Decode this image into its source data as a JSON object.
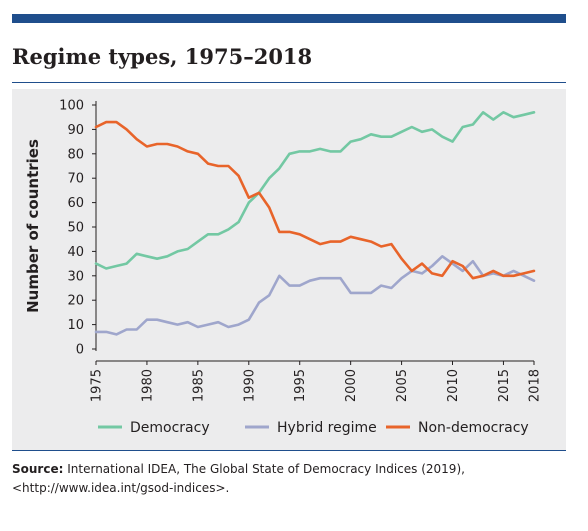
{
  "title": "Regime types, 1975–2018",
  "source": {
    "label": "Source:",
    "text": "International IDEA, The Global State of Democracy Indices (2019), <http://www.idea.int/gsod-indices>."
  },
  "colors": {
    "brand_bar": "#1f4e8c",
    "panel_bg": "#ececed",
    "democracy": "#73c8a3",
    "hybrid": "#9fa6cc",
    "non_democracy": "#e8642a"
  },
  "chart_data": {
    "type": "line",
    "ylabel": "Number of countries",
    "xlabel": "",
    "ylim": [
      0,
      100
    ],
    "xlim": [
      1975,
      2018
    ],
    "yticks": [
      0,
      10,
      20,
      30,
      40,
      50,
      60,
      70,
      80,
      90,
      100
    ],
    "xticks": [
      1975,
      1980,
      1985,
      1990,
      1995,
      2000,
      2005,
      2010,
      2015,
      2018
    ],
    "grid": false,
    "legend": "bottom",
    "x": [
      1975,
      1976,
      1977,
      1978,
      1979,
      1980,
      1981,
      1982,
      1983,
      1984,
      1985,
      1986,
      1987,
      1988,
      1989,
      1990,
      1991,
      1992,
      1993,
      1994,
      1995,
      1996,
      1997,
      1998,
      1999,
      2000,
      2001,
      2002,
      2003,
      2004,
      2005,
      2006,
      2007,
      2008,
      2009,
      2010,
      2011,
      2012,
      2013,
      2014,
      2015,
      2016,
      2017,
      2018
    ],
    "series": [
      {
        "name": "Democracy",
        "color": "#73c8a3",
        "values": [
          35,
          33,
          34,
          35,
          39,
          38,
          37,
          38,
          40,
          41,
          44,
          47,
          47,
          49,
          52,
          60,
          64,
          70,
          74,
          80,
          81,
          81,
          82,
          81,
          81,
          85,
          86,
          88,
          87,
          87,
          89,
          91,
          89,
          90,
          87,
          85,
          91,
          92,
          97,
          94,
          97,
          95,
          96,
          97
        ]
      },
      {
        "name": "Hybrid regime",
        "color": "#9fa6cc",
        "values": [
          7,
          7,
          6,
          8,
          8,
          12,
          12,
          11,
          10,
          11,
          9,
          10,
          11,
          9,
          10,
          12,
          19,
          22,
          30,
          26,
          26,
          28,
          29,
          29,
          29,
          23,
          23,
          23,
          26,
          25,
          29,
          32,
          31,
          34,
          38,
          35,
          32,
          36,
          30,
          31,
          30,
          32,
          30,
          28
        ]
      },
      {
        "name": "Non-democracy",
        "color": "#e8642a",
        "values": [
          91,
          93,
          93,
          90,
          86,
          83,
          84,
          84,
          83,
          81,
          80,
          76,
          75,
          75,
          71,
          62,
          64,
          58,
          48,
          48,
          47,
          45,
          43,
          44,
          44,
          46,
          45,
          44,
          42,
          43,
          37,
          32,
          35,
          31,
          30,
          36,
          34,
          29,
          30,
          32,
          30,
          30,
          31,
          32
        ]
      }
    ]
  }
}
